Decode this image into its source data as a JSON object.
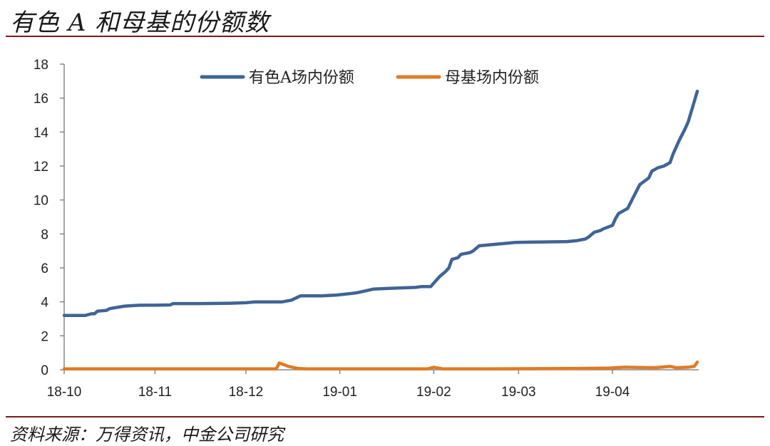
{
  "header": {
    "title": "有色 A 和母基的份额数"
  },
  "footer": {
    "source": "资料来源：万得资讯，中金公司研究"
  },
  "colors": {
    "rule": "#7a1a1a",
    "series_a": "#3f6496",
    "series_b": "#e07b24",
    "axis": "#888888"
  },
  "chart_data": {
    "type": "line",
    "title": "",
    "xlabel": "",
    "ylabel": "",
    "ylim": [
      0,
      18
    ],
    "yticks": [
      0,
      2,
      4,
      6,
      8,
      10,
      12,
      14,
      16,
      18
    ],
    "x_range": [
      0,
      205
    ],
    "xticks": [
      {
        "x": 0,
        "label": "18-10"
      },
      {
        "x": 30,
        "label": "18-11"
      },
      {
        "x": 60,
        "label": "18-12"
      },
      {
        "x": 91,
        "label": "19-01"
      },
      {
        "x": 122,
        "label": "19-02"
      },
      {
        "x": 150,
        "label": "19-03"
      },
      {
        "x": 181,
        "label": "19-04"
      }
    ],
    "legend_position": "top-center",
    "grid": false,
    "series": [
      {
        "name": "有色A场内份额",
        "color": "#3f6496",
        "points": [
          [
            0,
            3.2
          ],
          [
            7,
            3.2
          ],
          [
            9,
            3.3
          ],
          [
            10,
            3.3
          ],
          [
            11,
            3.45
          ],
          [
            14,
            3.5
          ],
          [
            15,
            3.6
          ],
          [
            20,
            3.75
          ],
          [
            25,
            3.8
          ],
          [
            30,
            3.8
          ],
          [
            35,
            3.82
          ],
          [
            36,
            3.9
          ],
          [
            45,
            3.9
          ],
          [
            55,
            3.92
          ],
          [
            60,
            3.95
          ],
          [
            63,
            4.0
          ],
          [
            72,
            4.0
          ],
          [
            75,
            4.1
          ],
          [
            78,
            4.35
          ],
          [
            85,
            4.35
          ],
          [
            90,
            4.4
          ],
          [
            95,
            4.5
          ],
          [
            97,
            4.55
          ],
          [
            102,
            4.75
          ],
          [
            108,
            4.8
          ],
          [
            116,
            4.85
          ],
          [
            118,
            4.9
          ],
          [
            121,
            4.9
          ],
          [
            122,
            5.1
          ],
          [
            124,
            5.5
          ],
          [
            126,
            5.8
          ],
          [
            127,
            6.0
          ],
          [
            128,
            6.5
          ],
          [
            130,
            6.6
          ],
          [
            131,
            6.8
          ],
          [
            134,
            6.9
          ],
          [
            135,
            7.0
          ],
          [
            137,
            7.3
          ],
          [
            143,
            7.4
          ],
          [
            149,
            7.5
          ],
          [
            155,
            7.52
          ],
          [
            160,
            7.53
          ],
          [
            166,
            7.55
          ],
          [
            169,
            7.6
          ],
          [
            172,
            7.7
          ],
          [
            173,
            7.8
          ],
          [
            175,
            8.1
          ],
          [
            177,
            8.2
          ],
          [
            178,
            8.3
          ],
          [
            181,
            8.5
          ],
          [
            182,
            8.9
          ],
          [
            183,
            9.2
          ],
          [
            186,
            9.5
          ],
          [
            188,
            10.2
          ],
          [
            190,
            10.9
          ],
          [
            193,
            11.3
          ],
          [
            194,
            11.7
          ],
          [
            196,
            11.9
          ],
          [
            198,
            12.0
          ],
          [
            200,
            12.2
          ],
          [
            201,
            12.7
          ],
          [
            203,
            13.5
          ],
          [
            205,
            14.2
          ],
          [
            206,
            14.6
          ],
          [
            208,
            15.8
          ],
          [
            209,
            16.4
          ]
        ]
      },
      {
        "name": "母基场内份额",
        "color": "#e07b24",
        "points": [
          [
            0,
            0.05
          ],
          [
            50,
            0.05
          ],
          [
            70,
            0.05
          ],
          [
            71,
            0.4
          ],
          [
            74,
            0.2
          ],
          [
            77,
            0.08
          ],
          [
            80,
            0.05
          ],
          [
            120,
            0.05
          ],
          [
            122,
            0.15
          ],
          [
            125,
            0.05
          ],
          [
            140,
            0.05
          ],
          [
            170,
            0.08
          ],
          [
            180,
            0.1
          ],
          [
            185,
            0.15
          ],
          [
            195,
            0.12
          ],
          [
            200,
            0.2
          ],
          [
            202,
            0.12
          ],
          [
            206,
            0.15
          ],
          [
            208,
            0.2
          ],
          [
            209,
            0.45
          ]
        ]
      }
    ]
  }
}
